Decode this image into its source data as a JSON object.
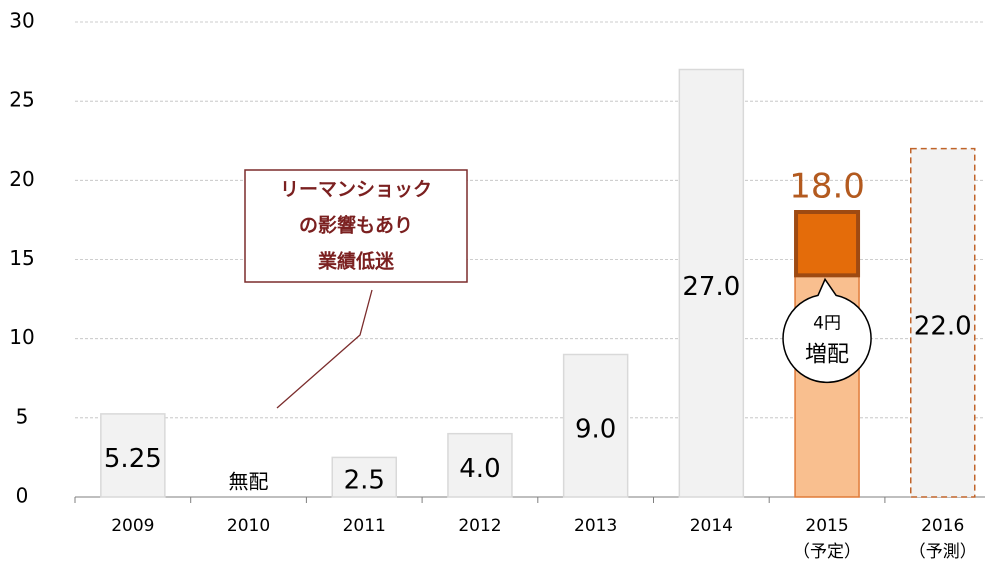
{
  "chart_data": {
    "type": "bar",
    "categories": [
      "2009",
      "2010",
      "2011",
      "2012",
      "2013",
      "2014",
      "2015",
      "2016"
    ],
    "category_notes": [
      null,
      null,
      null,
      null,
      null,
      null,
      "（予定）",
      "（予測）"
    ],
    "values": [
      5.25,
      0,
      2.5,
      4.0,
      9.0,
      27.0,
      18.0,
      22.0
    ],
    "value_labels": [
      "5.25",
      "無配",
      "2.5",
      "4.0",
      "9.0",
      "27.0",
      "18.0",
      "22.0"
    ],
    "colors": [
      "#f2f2f2",
      "#f2f2f2",
      "#f2f2f2",
      "#f2f2f2",
      "#f2f2f2",
      "#f2f2f2",
      "#f9bf8f",
      "#f2f2f2"
    ],
    "edge_colors": [
      "#d9d9d9",
      "#d9d9d9",
      "#d9d9d9",
      "#d9d9d9",
      "#d9d9d9",
      "#d9d9d9",
      "#e07b39",
      "#c0642a"
    ],
    "dashed": [
      false,
      false,
      false,
      false,
      false,
      false,
      false,
      true
    ],
    "increase": {
      "index": 6,
      "value": 4,
      "label": "4円",
      "note": "増配",
      "color": "#e46c0a",
      "edge_color": "#9e4a12"
    },
    "annotation": [
      "リーマンショック",
      "の影響もあり",
      "業績低迷"
    ],
    "ylim": [
      0,
      30
    ],
    "yticks": [
      0,
      5,
      10,
      15,
      20,
      25,
      30
    ],
    "grid": true
  }
}
